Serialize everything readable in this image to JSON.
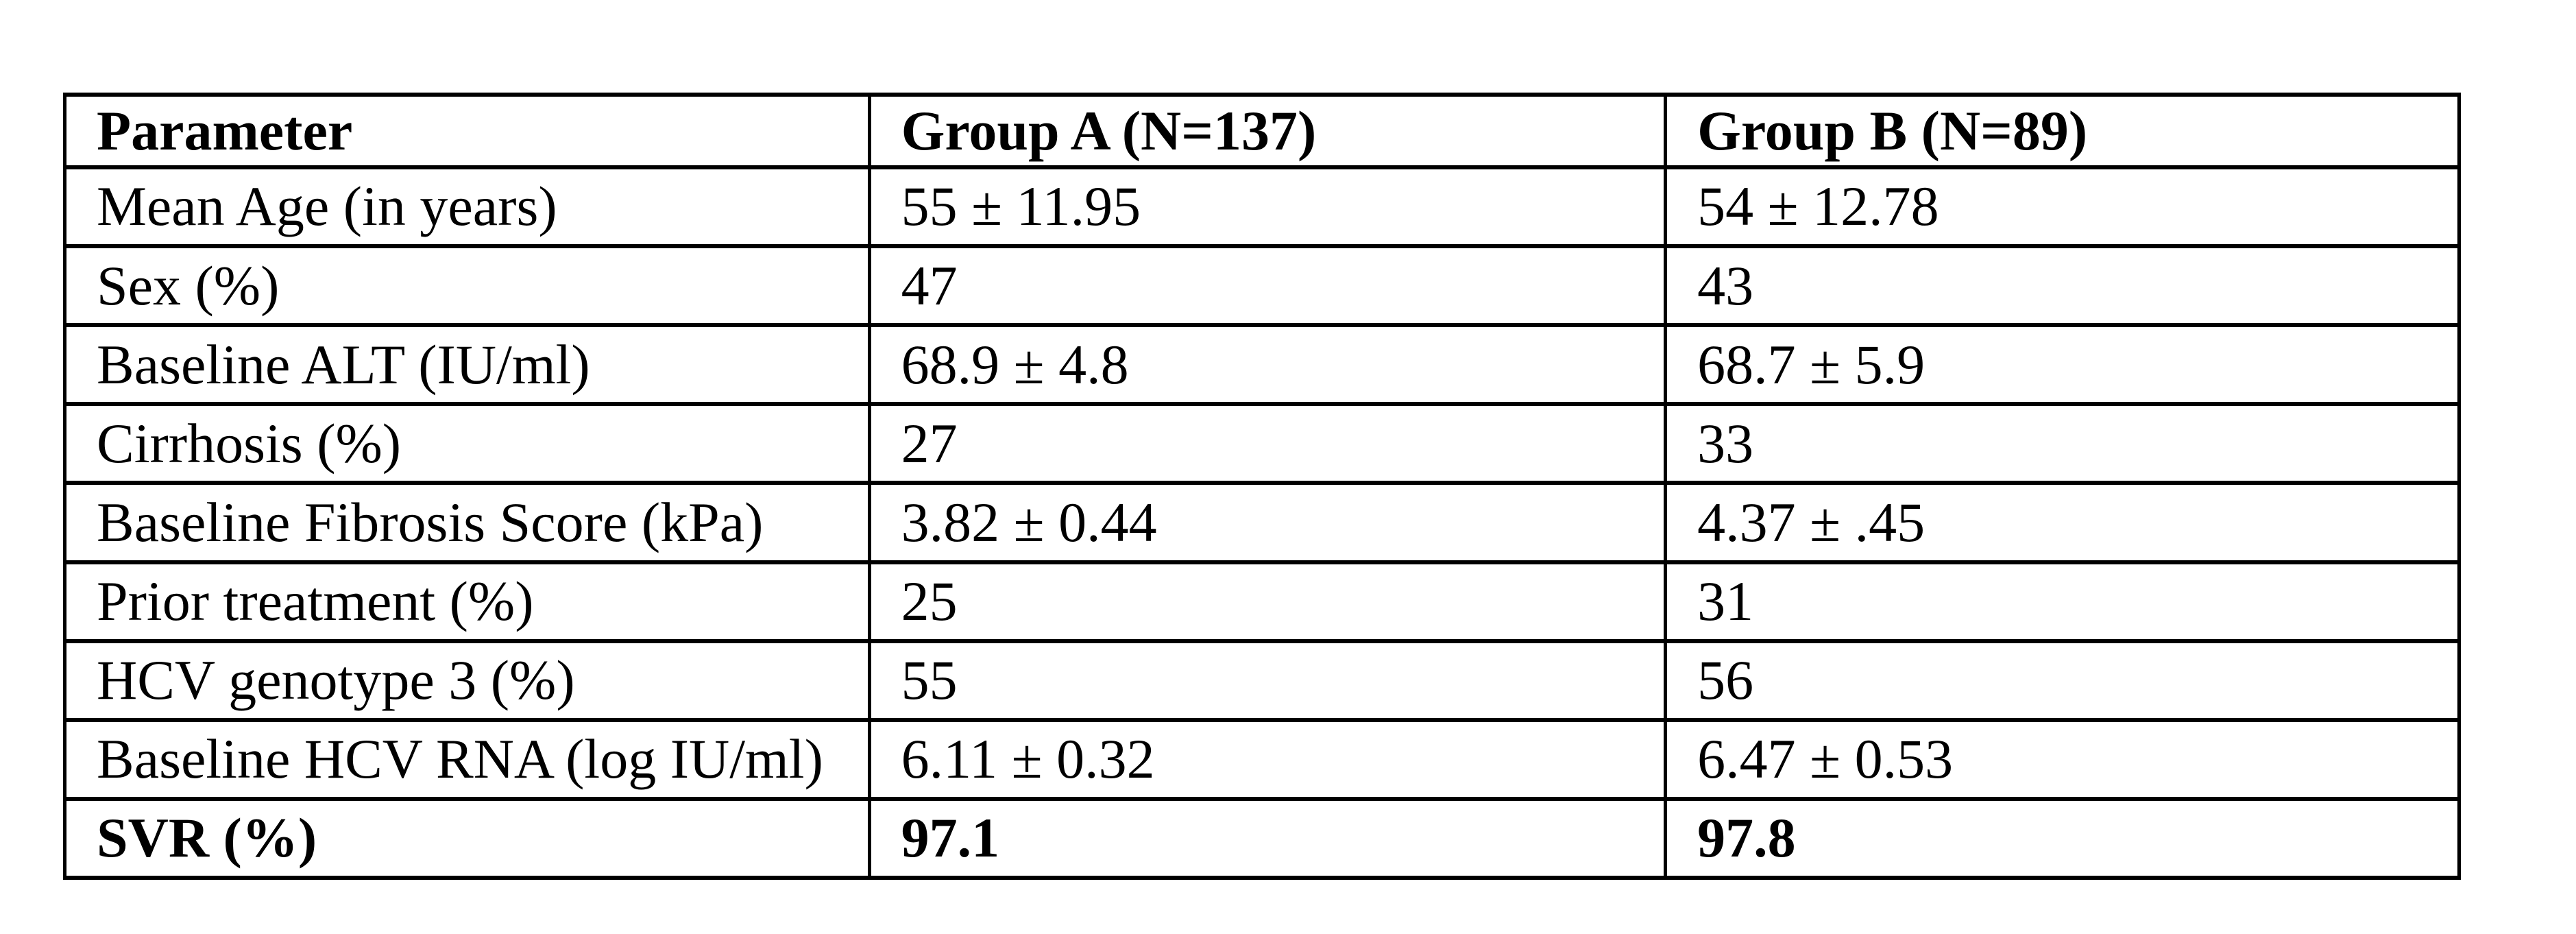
{
  "page": {
    "background_color": "#ffffff",
    "text_color": "#000000",
    "border_color": "#000000"
  },
  "table": {
    "columns": [
      {
        "key": "parameter",
        "label": "Parameter"
      },
      {
        "key": "group_a",
        "label": "Group A (N=137)"
      },
      {
        "key": "group_b",
        "label": "Group B (N=89)"
      }
    ],
    "rows": [
      {
        "parameter": "Mean Age (in years)",
        "group_a": "55 ± 11.95",
        "group_b": "54 ± 12.78",
        "bold": false
      },
      {
        "parameter": "Sex (%)",
        "group_a": "47",
        "group_b": "43",
        "bold": false
      },
      {
        "parameter": "Baseline ALT (IU/ml)",
        "group_a": "68.9 ± 4.8",
        "group_b": "68.7 ± 5.9",
        "bold": false
      },
      {
        "parameter": "Cirrhosis (%)",
        "group_a": "27",
        "group_b": "33",
        "bold": false
      },
      {
        "parameter": "Baseline Fibrosis Score (kPa)",
        "group_a": "3.82 ± 0.44",
        "group_b": "4.37 ± .45",
        "bold": false
      },
      {
        "parameter": "Prior treatment (%)",
        "group_a": "25",
        "group_b": "31",
        "bold": false
      },
      {
        "parameter": "HCV genotype 3 (%)",
        "group_a": "55",
        "group_b": "56",
        "bold": false
      },
      {
        "parameter": "Baseline HCV RNA (log IU/ml)",
        "group_a": "6.11 ± 0.32",
        "group_b": "6.47 ± 0.53",
        "bold": false
      },
      {
        "parameter": "SVR (%)",
        "group_a": "97.1",
        "group_b": "97.8",
        "bold": true
      }
    ]
  }
}
